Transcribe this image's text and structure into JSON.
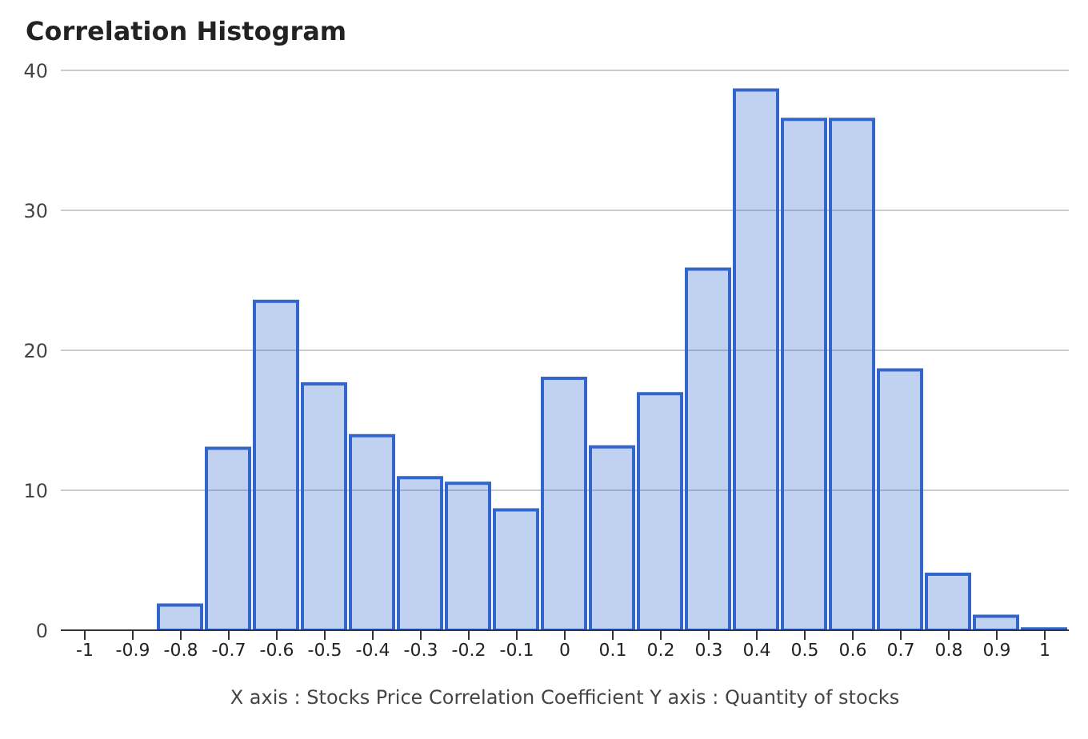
{
  "chart_data": {
    "type": "histogram",
    "title": "Correlation Histogram",
    "xlabel": "X axis : Stocks Price Correlation Coefficient  Y axis : Quantity of stocks",
    "bins": [
      -1.05,
      -0.95,
      -0.85,
      -0.75,
      -0.65,
      -0.55,
      -0.45,
      -0.35,
      -0.25,
      -0.15,
      -0.05,
      0.05,
      0.15,
      0.25,
      0.35,
      0.45,
      0.55,
      0.65,
      0.75,
      0.85,
      0.95,
      1.05
    ],
    "values": [
      0,
      0,
      1.8,
      13,
      23.5,
      17.6,
      13.9,
      10.9,
      10.5,
      8.6,
      18,
      13.1,
      16.9,
      25.8,
      38.6,
      36.5,
      36.5,
      18.6,
      4,
      1,
      0.1
    ],
    "color": "#3366cc",
    "xlim": [
      -1.05,
      1.05
    ],
    "xticks": [
      -1,
      -0.9,
      -0.8,
      -0.7,
      -0.6,
      -0.5,
      -0.4,
      -0.3,
      -0.2,
      -0.1,
      0,
      0.1,
      0.2,
      0.3,
      0.4,
      0.5,
      0.6,
      0.7,
      0.8,
      0.9,
      1
    ],
    "ylim": [
      0,
      40
    ],
    "yticks": [
      0,
      10,
      20,
      30,
      40
    ],
    "grid": "y"
  }
}
